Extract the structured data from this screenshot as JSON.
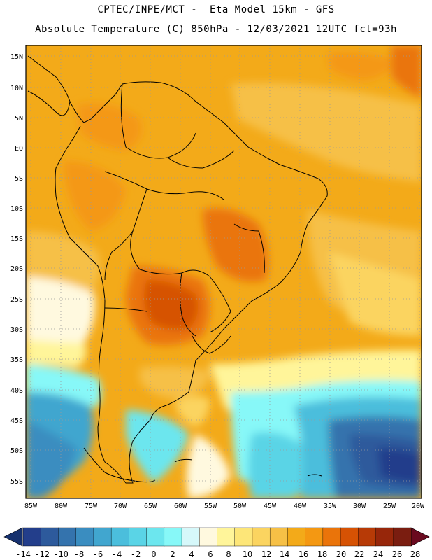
{
  "header": {
    "line1": "CPTEC/INPE/MCT -  Eta Model 15km - GFS",
    "line2": "Absolute Temperature (C) 850hPa - 12/03/2021 12UTC fct=93h"
  },
  "latitude_labels": [
    "15N",
    "10N",
    "5N",
    "EQ",
    "5S",
    "10S",
    "15S",
    "20S",
    "25S",
    "30S",
    "35S",
    "40S",
    "45S",
    "50S",
    "55S"
  ],
  "longitude_labels": [
    "85W",
    "80W",
    "75W",
    "70W",
    "65W",
    "60W",
    "55W",
    "50W",
    "45W",
    "40W",
    "35W",
    "30W",
    "25W",
    "20W"
  ],
  "colorbar": {
    "tick_labels": [
      "-14",
      "-12",
      "-10",
      "-8",
      "-6",
      "-4",
      "-2",
      "0",
      "2",
      "4",
      "6",
      "8",
      "10",
      "12",
      "14",
      "16",
      "18",
      "20",
      "22",
      "24",
      "26",
      "28"
    ],
    "colors": [
      "#233e8b",
      "#2d5a9c",
      "#3473ad",
      "#3a8dc0",
      "#41a6cf",
      "#4bbedc",
      "#5ad4e6",
      "#6ce6ee",
      "#87f8f8",
      "#d6f8fa",
      "#fff9df",
      "#fff59a",
      "#fde678",
      "#fbd460",
      "#f6c046",
      "#f3aa19",
      "#f49812",
      "#ea740a",
      "#d65204",
      "#b73a06",
      "#97260a",
      "#7a1d10"
    ],
    "low_arrow_color": "#16316f",
    "high_arrow_color": "#6a0a1f"
  },
  "colors": {
    "background": "#ffffff",
    "grid": "#9a9a9a",
    "coast": "#000000"
  }
}
